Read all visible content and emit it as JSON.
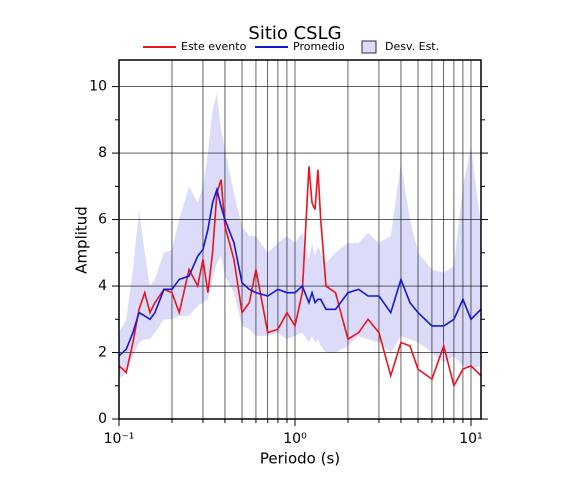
{
  "chart_data": {
    "type": "band-line",
    "title": "Sitio CSLG",
    "x_label": "Periodo (s)",
    "y_label": "Amplitud",
    "x": [
      0.1,
      0.11,
      0.12,
      0.13,
      0.14,
      0.15,
      0.16,
      0.18,
      0.2,
      0.22,
      0.25,
      0.28,
      0.3,
      0.32,
      0.34,
      0.36,
      0.38,
      0.4,
      0.45,
      0.5,
      0.55,
      0.6,
      0.7,
      0.8,
      0.9,
      1.0,
      1.1,
      1.2,
      1.25,
      1.3,
      1.35,
      1.4,
      1.5,
      1.7,
      2.0,
      2.3,
      2.6,
      3.0,
      3.5,
      4.0,
      4.5,
      5,
      6,
      7,
      8,
      9,
      10,
      11.4
    ],
    "series": [
      {
        "name": "Este evento",
        "color": "#e8141e",
        "values": [
          1.6,
          1.4,
          2.3,
          3.3,
          3.8,
          3.2,
          3.5,
          3.9,
          3.8,
          3.2,
          4.5,
          4.0,
          4.8,
          3.8,
          5.0,
          6.8,
          7.2,
          5.8,
          4.8,
          3.2,
          3.5,
          4.5,
          2.6,
          2.7,
          3.2,
          2.8,
          3.8,
          7.6,
          6.5,
          6.3,
          7.5,
          6.0,
          4.0,
          3.8,
          2.4,
          2.6,
          3.0,
          2.6,
          1.3,
          2.3,
          2.2,
          1.5,
          1.2,
          2.2,
          1.0,
          1.5,
          1.6,
          1.3
        ]
      },
      {
        "name": "Promedio",
        "color": "#1418d2",
        "values": [
          1.9,
          2.1,
          2.6,
          3.2,
          3.1,
          3.0,
          3.2,
          3.9,
          3.9,
          4.2,
          4.3,
          4.9,
          5.1,
          5.7,
          6.5,
          6.9,
          6.4,
          6.0,
          5.3,
          4.1,
          3.9,
          3.8,
          3.7,
          3.9,
          3.8,
          3.8,
          4.0,
          3.5,
          3.8,
          3.5,
          3.6,
          3.6,
          3.3,
          3.3,
          3.8,
          3.9,
          3.7,
          3.7,
          3.2,
          4.2,
          3.5,
          3.2,
          2.8,
          2.8,
          3.0,
          3.6,
          3.0,
          3.3
        ]
      }
    ],
    "band": {
      "name": "Desv. Est.",
      "color": "#dcdcfa",
      "lower": [
        1.2,
        1.4,
        1.9,
        2.3,
        2.4,
        2.4,
        2.6,
        3.0,
        3.0,
        3.1,
        3.1,
        3.4,
        3.5,
        3.6,
        4.2,
        4.7,
        4.9,
        4.3,
        3.8,
        2.8,
        2.7,
        2.5,
        2.5,
        2.6,
        2.4,
        2.5,
        2.6,
        2.3,
        2.5,
        2.3,
        2.4,
        2.2,
        2.0,
        2.0,
        2.2,
        2.5,
        2.4,
        2.3,
        2.0,
        2.5,
        2.4,
        2.3,
        2.0,
        1.7,
        1.9,
        1.6,
        1.5,
        1.6
      ],
      "upper": [
        2.6,
        3.0,
        4.5,
        6.3,
        5.0,
        4.0,
        4.2,
        5.0,
        5.1,
        6.0,
        7.0,
        6.5,
        7.0,
        8.0,
        9.3,
        9.8,
        8.7,
        8.1,
        6.8,
        5.8,
        5.5,
        5.5,
        5.0,
        5.3,
        5.5,
        5.3,
        5.6,
        4.8,
        5.3,
        4.9,
        5.2,
        5.0,
        4.7,
        5.0,
        5.3,
        5.3,
        5.6,
        5.3,
        5.5,
        7.7,
        6.0,
        5.0,
        4.5,
        4.4,
        4.6,
        7.0,
        8.2,
        5.8
      ]
    },
    "xlog": true,
    "xlim": [
      0.1,
      11.4
    ],
    "xticks": [
      {
        "value": 0.1,
        "label": "10⁻¹"
      },
      {
        "value": 1,
        "label": "10⁰"
      },
      {
        "value": 10,
        "label": "10¹"
      }
    ],
    "xminor": [
      0.2,
      0.3,
      0.4,
      0.5,
      0.6,
      0.7,
      0.8,
      0.9,
      2,
      3,
      4,
      5,
      6,
      7,
      8,
      9
    ],
    "ylim": [
      0,
      10.8
    ],
    "yticks": [
      0,
      2,
      4,
      6,
      8,
      10
    ],
    "yminor": [
      1,
      3,
      5,
      7,
      9
    ],
    "grid": true
  }
}
